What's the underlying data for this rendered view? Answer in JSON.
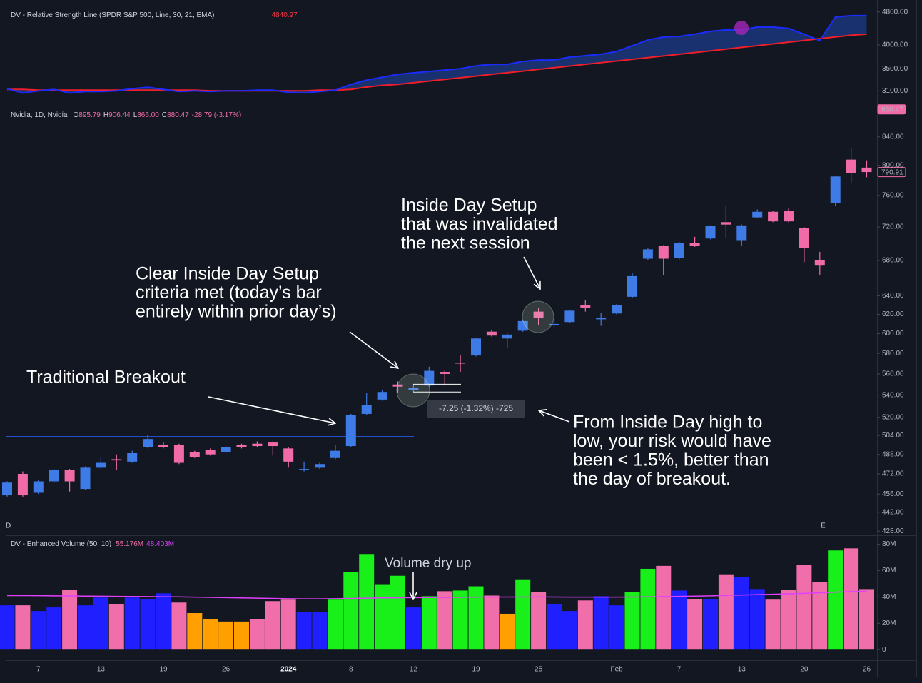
{
  "chart_data": [
    {
      "type": "line",
      "title": "DV - Relative Strength Line (SPDR S&P 500, Line, 30, 21, EMA)",
      "legend_value": 4840.97,
      "legend_color": "#f23645",
      "series": [
        {
          "color": "#1a2bff",
          "values": [
            3137,
            3063,
            3100,
            3125,
            3063,
            3088,
            3088,
            3100,
            3137,
            3162,
            3125,
            3088,
            3100,
            3088,
            3100,
            3100,
            3112,
            3112,
            3075,
            3063,
            3088,
            3112,
            3213,
            3291,
            3343,
            3397,
            3424,
            3451,
            3479,
            3506,
            3563,
            3591,
            3591,
            3649,
            3678,
            3678,
            3737,
            3767,
            3797,
            3857,
            3982,
            4111,
            4177,
            4193,
            4244,
            4312,
            4346,
            4346,
            4416,
            4416,
            4381,
            4244,
            4094,
            4668,
            4705,
            4705
          ]
        },
        {
          "color": "#f01e28",
          "values": [
            3125,
            3125,
            3112,
            3112,
            3112,
            3112,
            3112,
            3112,
            3112,
            3112,
            3112,
            3112,
            3112,
            3100,
            3100,
            3100,
            3100,
            3100,
            3100,
            3100,
            3112,
            3112,
            3125,
            3166,
            3196,
            3213,
            3243,
            3272,
            3303,
            3333,
            3364,
            3397,
            3428,
            3459,
            3492,
            3524,
            3557,
            3591,
            3624,
            3658,
            3692,
            3727,
            3762,
            3797,
            3833,
            3869,
            3907,
            3944,
            3982,
            4021,
            4060,
            4100,
            4140,
            4180,
            4220,
            4244
          ]
        }
      ],
      "fill_color": "rgba(41,98,255,0.35)",
      "log_scale": true,
      "ylim": [
        2890,
        4970
      ],
      "yticks": [
        {
          "value": 3100,
          "label": "3100.00"
        },
        {
          "value": 3500,
          "label": "3500.00"
        },
        {
          "value": 4000,
          "label": "4000.00"
        },
        {
          "value": 4800,
          "label": "4800.00"
        }
      ]
    },
    {
      "type": "candlestick",
      "title": "Nvidia, 1D, Nvidia",
      "ohlc_legend": [
        {
          "key": "O",
          "value": "895.79"
        },
        {
          "key": "H",
          "value": "906.44"
        },
        {
          "key": "L",
          "value": "866.00"
        },
        {
          "key": "C",
          "value": "880.47"
        }
      ],
      "change": "-28.79 (-3.17%)",
      "open": [
        455,
        472,
        457,
        466,
        475,
        460,
        477,
        484,
        482,
        494,
        496,
        496,
        490,
        492,
        490,
        496,
        497,
        498,
        493,
        475,
        477,
        485,
        495,
        523,
        536,
        550,
        545,
        549,
        562,
        571,
        578,
        602,
        595,
        603,
        623,
        609,
        612,
        630,
        616,
        621,
        639,
        682,
        697,
        683,
        701,
        706,
        726,
        704,
        732,
        739,
        740,
        719,
        680,
        750,
        808,
        797
      ],
      "high": [
        466,
        474,
        467,
        476,
        476,
        478,
        486,
        488,
        491,
        505,
        498,
        497,
        491,
        493,
        495,
        497,
        499,
        499,
        494,
        482,
        481,
        496,
        523,
        542,
        545,
        553,
        550,
        567,
        563,
        578,
        596,
        604,
        600,
        614,
        627,
        616,
        625,
        635,
        622,
        631,
        666,
        694,
        698,
        702,
        708,
        722,
        746,
        723,
        742,
        740,
        743,
        720,
        690,
        786,
        824,
        807
      ],
      "low": [
        454,
        454,
        456,
        465,
        458,
        459,
        476,
        475,
        481,
        493,
        493,
        480,
        485,
        487,
        489,
        493,
        494,
        487,
        477,
        474,
        476,
        484,
        494,
        522,
        535,
        542,
        543,
        548,
        549,
        562,
        577,
        597,
        585,
        602,
        609,
        607,
        611,
        623,
        608,
        620,
        638,
        680,
        663,
        681,
        696,
        705,
        706,
        697,
        731,
        726,
        726,
        678,
        663,
        746,
        777,
        784
      ],
      "close": [
        465,
        455,
        466,
        475,
        466,
        477,
        481,
        483,
        489,
        501,
        494,
        481,
        486,
        488,
        494,
        494,
        495,
        495,
        482,
        476,
        480,
        491,
        522,
        531,
        543,
        548,
        547,
        563,
        560,
        570,
        595,
        598,
        599,
        613,
        616,
        610,
        624,
        627,
        616,
        630,
        662,
        693,
        682,
        701,
        697,
        721,
        723,
        722,
        739,
        727,
        727,
        695,
        674,
        785,
        790,
        791
      ],
      "up_color": "#3f7be6",
      "down_color": "#f06ba8",
      "log_scale": true,
      "ylim": [
        426,
        884
      ],
      "yticks": [
        {
          "value": 428,
          "label": "428.00"
        },
        {
          "value": 442,
          "label": "442.00"
        },
        {
          "value": 456,
          "label": "456.00"
        },
        {
          "value": 472,
          "label": "472.00"
        },
        {
          "value": 488,
          "label": "488.00"
        },
        {
          "value": 504,
          "label": "504.00"
        },
        {
          "value": 520,
          "label": "520.00"
        },
        {
          "value": 540,
          "label": "540.00"
        },
        {
          "value": 560,
          "label": "560.00"
        },
        {
          "value": 580,
          "label": "580.00"
        },
        {
          "value": 600,
          "label": "600.00"
        },
        {
          "value": 620,
          "label": "620.00"
        },
        {
          "value": 640,
          "label": "640.00"
        },
        {
          "value": 680,
          "label": "680.00"
        },
        {
          "value": 720,
          "label": "720.00"
        },
        {
          "value": 760,
          "label": "760.00"
        },
        {
          "value": 800,
          "label": "800.00"
        },
        {
          "value": 840,
          "label": "840.00"
        }
      ],
      "level": 503,
      "level_color": "#2962ff",
      "price_labels": [
        880.47,
        790.91
      ],
      "measure": {
        "high": 550.25,
        "low": 543,
        "label": "-7.25 (-1.32%) -725"
      },
      "annotations": [
        [
          "Traditional Breakout"
        ],
        [
          "Clear Inside Day Setup",
          "criteria met (today’s bar",
          "entirely within prior day’s)"
        ],
        [
          "Inside Day Setup",
          "that was invalidated",
          "the next session"
        ],
        [
          "From Inside Day high to",
          "low, your risk would have",
          "been < 1.5%, better than",
          "the day of breakout."
        ]
      ],
      "markers": [
        "D",
        "E"
      ]
    },
    {
      "type": "bar",
      "title": "DV - Enhanced Volume (50, 10)",
      "legend_values": [
        "55.176M",
        "48.403M"
      ],
      "categories": [
        null,
        null,
        "7",
        null,
        null,
        null,
        "13",
        null,
        null,
        null,
        "19",
        null,
        null,
        null,
        "26",
        null,
        null,
        null,
        "2024",
        null,
        null,
        null,
        "8",
        null,
        null,
        null,
        "12",
        null,
        null,
        null,
        "19",
        null,
        null,
        null,
        "25",
        null,
        null,
        null,
        null,
        "Feb",
        null,
        null,
        null,
        "7",
        null,
        null,
        null,
        "13",
        null,
        null,
        null,
        "20",
        null,
        null,
        null,
        "26"
      ],
      "values": [
        33.6,
        33.6,
        29.3,
        32,
        45.3,
        33.6,
        39.5,
        34.7,
        39.5,
        38.4,
        42.7,
        35.7,
        27.7,
        22.9,
        21.3,
        21.3,
        22.9,
        36.8,
        37.9,
        28.3,
        28.3,
        37.9,
        58.7,
        72.5,
        49.6,
        56,
        32,
        40.5,
        44.3,
        44.8,
        48,
        41,
        27.2,
        53.3,
        43.7,
        34.7,
        29.3,
        37.3,
        40.5,
        33.6,
        43.7,
        61.3,
        63.5,
        44.8,
        38.4,
        38.4,
        57.1,
        54.9,
        45.9,
        37.9,
        45.3,
        64.5,
        51.2,
        75.2,
        76.8,
        45.9
      ],
      "colors": [
        "#1f1fff",
        "#f06eaa",
        "#1f1fff",
        "#1f1fff",
        "#f06eaa",
        "#1f1fff",
        "#1f1fff",
        "#f06eaa",
        "#1f1fff",
        "#1f1fff",
        "#1f1fff",
        "#f06eaa",
        "#ffa000",
        "#ffa000",
        "#ffa000",
        "#ffa000",
        "#f06eaa",
        "#f06eaa",
        "#f06eaa",
        "#1f1fff",
        "#1f1fff",
        "#19f019",
        "#19f019",
        "#19f019",
        "#19f019",
        "#19f019",
        "#1f1fff",
        "#19f019",
        "#f06eaa",
        "#19f019",
        "#19f019",
        "#f06eaa",
        "#ffa000",
        "#19f019",
        "#f06eaa",
        "#1f1fff",
        "#1f1fff",
        "#f06eaa",
        "#1f1fff",
        "#1f1fff",
        "#19f019",
        "#19f019",
        "#f06eaa",
        "#1f1fff",
        "#f06eaa",
        "#1f1fff",
        "#f06eaa",
        "#1f1fff",
        "#1f1fff",
        "#f06eaa",
        "#f06eaa",
        "#f06eaa",
        "#f06eaa",
        "#19f019",
        "#f06eaa",
        "#f06eaa"
      ],
      "ma_values": [
        41,
        41,
        40.9,
        40.8,
        40.7,
        40.6,
        40.5,
        40.4,
        40.3,
        40.2,
        40.1,
        40,
        39.8,
        39.6,
        39.4,
        39.2,
        39,
        38.8,
        38.6,
        38.5,
        38.5,
        38.6,
        38.8,
        39,
        39.2,
        39.3,
        39.4,
        39.5,
        39.6,
        39.7,
        39.8,
        39.9,
        39.9,
        39.9,
        40,
        39.9,
        39.8,
        39.8,
        39.8,
        39.8,
        39.9,
        40,
        40.2,
        40.4,
        40.6,
        40.8,
        41.1,
        41.4,
        41.7,
        42,
        42.3,
        42.7,
        43.1,
        43.6,
        44,
        44.2
      ],
      "ma_color": "#e040fb",
      "annotation": "Volume dry up",
      "ylim": [
        -8,
        84
      ],
      "yticks": [
        0,
        {
          "value": 20,
          "label": "20M"
        },
        {
          "value": 40,
          "label": "40M"
        },
        {
          "value": 60,
          "label": "60M"
        },
        {
          "value": 80,
          "label": "80M"
        }
      ]
    }
  ]
}
